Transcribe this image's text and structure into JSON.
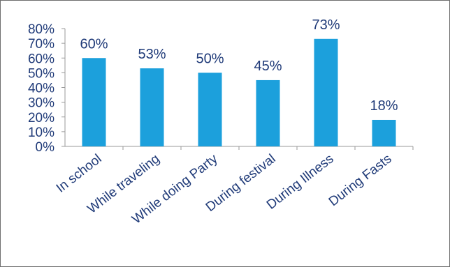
{
  "chart_data": {
    "type": "bar",
    "categories": [
      "In school",
      "While traveling",
      "While doing Party",
      "During festival",
      "During Illness",
      "During Fasts"
    ],
    "values": [
      60,
      53,
      50,
      45,
      73,
      18
    ],
    "value_labels": [
      "60%",
      "53%",
      "50%",
      "45%",
      "73%",
      "18%"
    ],
    "title": "",
    "xlabel": "",
    "ylabel": "",
    "ylim": [
      0,
      80
    ],
    "yticks": [
      0,
      10,
      20,
      30,
      40,
      50,
      60,
      70,
      80
    ],
    "ytick_labels": [
      "0%",
      "10%",
      "20%",
      "30%",
      "40%",
      "50%",
      "60%",
      "70%",
      "80%"
    ],
    "grid": false,
    "legend": "none",
    "bar_color": "#1ca0dc",
    "text_color": "#1f3a78",
    "axis_color": "#9a9a9a"
  }
}
